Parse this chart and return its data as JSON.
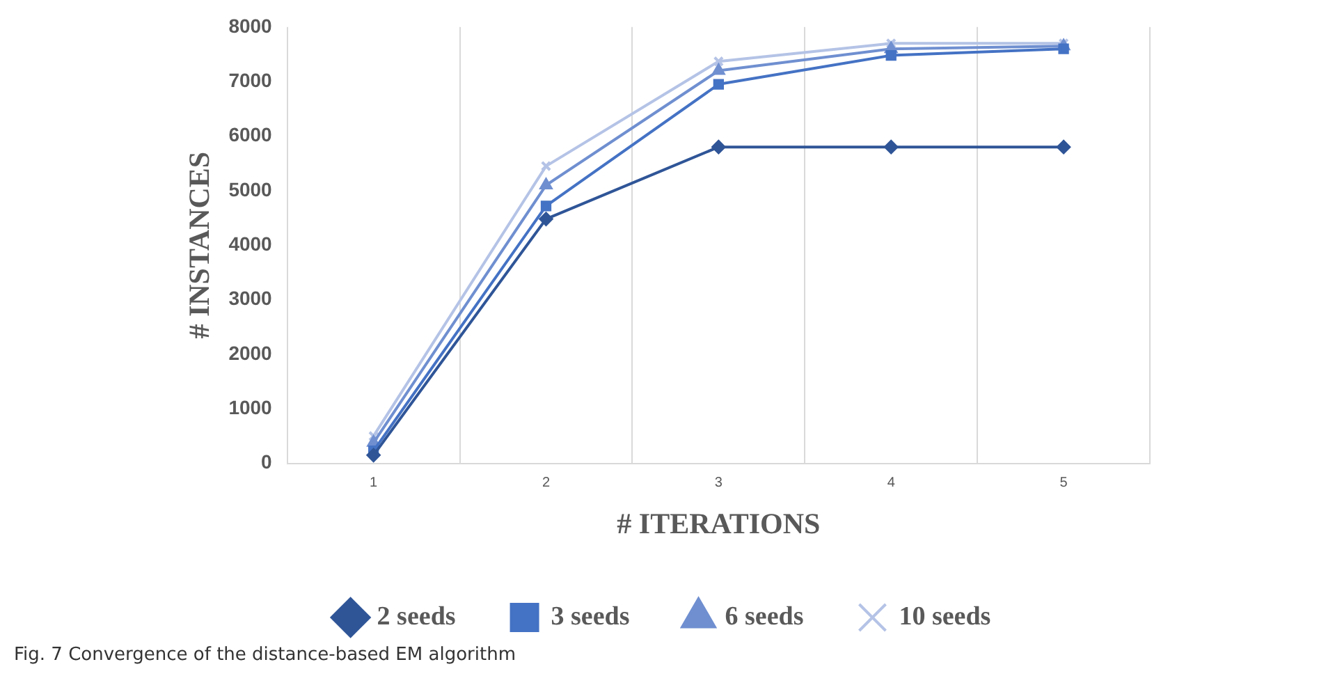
{
  "chart_data": {
    "type": "line",
    "xlabel": "# ITERATIONS",
    "ylabel": "# INSTANCES",
    "categories": [
      "1",
      "2",
      "3",
      "4",
      "5"
    ],
    "series": [
      {
        "name": "2 seeds",
        "color": "#2f5597",
        "marker": "diamond",
        "values": [
          150,
          4480,
          5800,
          5800,
          5800
        ]
      },
      {
        "name": "3 seeds",
        "color": "#4472c4",
        "marker": "square",
        "values": [
          230,
          4720,
          6950,
          7480,
          7600
        ]
      },
      {
        "name": "6 seeds",
        "color": "#6f8fd0",
        "marker": "triangle",
        "values": [
          380,
          5100,
          7200,
          7600,
          7650
        ]
      },
      {
        "name": "10 seeds",
        "color": "#b4c3e6",
        "marker": "cross",
        "values": [
          500,
          5450,
          7370,
          7700,
          7700
        ]
      }
    ],
    "ylim": [
      0,
      8000
    ],
    "yticks": [
      0,
      1000,
      2000,
      3000,
      4000,
      5000,
      6000,
      7000,
      8000
    ],
    "grid": "x",
    "legend": "bottom",
    "line_style": "solid",
    "annotations": [
      "Fig. 7 Convergence of the distance-based EM algorithm"
    ]
  }
}
